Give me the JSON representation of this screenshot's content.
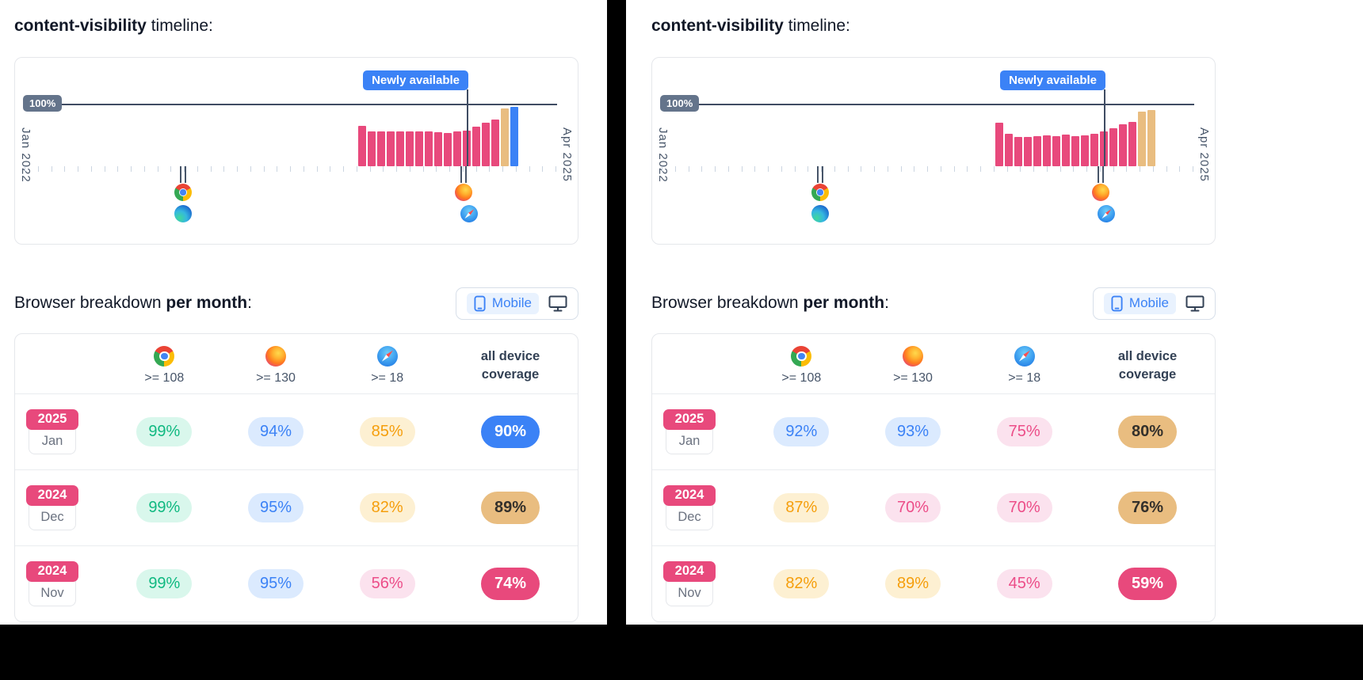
{
  "colors": {
    "pink": "#e8497c",
    "tan": "#e9bd80",
    "blue": "#3b82f6",
    "slate": "#3f4c63",
    "mint_bg": "#d9f7ec",
    "mint_text": "#10b981",
    "blue_bg": "#dbeafe",
    "blue_text": "#3b82f6",
    "orange_bg": "#fdf0d2",
    "orange_text": "#f59e0b",
    "pink_bg": "#fbe2ee",
    "pink_text": "#ec4d88"
  },
  "panels": [
    {
      "title": {
        "code": "content-visibility",
        "rest": " timeline:"
      },
      "timeline": {
        "y_max_label": "100%",
        "x_start_label": "Jan 2022",
        "x_end_label": "Apr 2025",
        "annotation": "Newly available",
        "markers": [
          {
            "icons": [
              "chrome",
              "edge"
            ]
          },
          {
            "icons": [
              "firefox",
              "safari"
            ]
          }
        ]
      },
      "breakdown": {
        "heading": {
          "plain": "Browser breakdown ",
          "bold": "per month",
          "suffix": ":"
        },
        "toggle": {
          "mobile_label": "Mobile"
        },
        "columns": [
          {
            "browser": "chrome",
            "version": ">= 108"
          },
          {
            "browser": "firefox",
            "version": ">= 130"
          },
          {
            "browser": "safari",
            "version": ">= 18"
          }
        ],
        "coverage_header": "all device coverage",
        "rows": [
          {
            "year": "2025",
            "month": "Jan",
            "cells": [
              {
                "text": "99%",
                "variant": "mint"
              },
              {
                "text": "94%",
                "variant": "blue"
              },
              {
                "text": "85%",
                "variant": "orange"
              }
            ],
            "coverage": {
              "text": "90%",
              "variant": "solid-blue"
            }
          },
          {
            "year": "2024",
            "month": "Dec",
            "cells": [
              {
                "text": "99%",
                "variant": "mint"
              },
              {
                "text": "95%",
                "variant": "blue"
              },
              {
                "text": "82%",
                "variant": "orange"
              }
            ],
            "coverage": {
              "text": "89%",
              "variant": "solid-tan"
            }
          },
          {
            "year": "2024",
            "month": "Nov",
            "cells": [
              {
                "text": "99%",
                "variant": "mint"
              },
              {
                "text": "95%",
                "variant": "blue"
              },
              {
                "text": "56%",
                "variant": "pink"
              }
            ],
            "coverage": {
              "text": "74%",
              "variant": "solid-pink"
            }
          }
        ]
      }
    },
    {
      "title": {
        "code": "content-visibility",
        "rest": " timeline:"
      },
      "timeline": {
        "y_max_label": "100%",
        "x_start_label": "Jan 2022",
        "x_end_label": "Apr 2025",
        "annotation": "Newly available",
        "markers": [
          {
            "icons": [
              "chrome",
              "edge"
            ]
          },
          {
            "icons": [
              "firefox",
              "safari"
            ]
          }
        ]
      },
      "breakdown": {
        "heading": {
          "plain": "Browser breakdown ",
          "bold": "per month",
          "suffix": ":"
        },
        "toggle": {
          "mobile_label": "Mobile"
        },
        "columns": [
          {
            "browser": "chrome",
            "version": ">= 108"
          },
          {
            "browser": "firefox",
            "version": ">= 130"
          },
          {
            "browser": "safari",
            "version": ">= 18"
          }
        ],
        "coverage_header": "all device coverage",
        "rows": [
          {
            "year": "2025",
            "month": "Jan",
            "cells": [
              {
                "text": "92%",
                "variant": "blue"
              },
              {
                "text": "93%",
                "variant": "blue"
              },
              {
                "text": "75%",
                "variant": "pink"
              }
            ],
            "coverage": {
              "text": "80%",
              "variant": "solid-tan"
            }
          },
          {
            "year": "2024",
            "month": "Dec",
            "cells": [
              {
                "text": "87%",
                "variant": "orange"
              },
              {
                "text": "70%",
                "variant": "pink"
              },
              {
                "text": "70%",
                "variant": "pink"
              }
            ],
            "coverage": {
              "text": "76%",
              "variant": "solid-tan"
            }
          },
          {
            "year": "2024",
            "month": "Nov",
            "cells": [
              {
                "text": "82%",
                "variant": "orange"
              },
              {
                "text": "89%",
                "variant": "orange"
              },
              {
                "text": "45%",
                "variant": "pink"
              }
            ],
            "coverage": {
              "text": "59%",
              "variant": "solid-pink"
            }
          }
        ]
      }
    }
  ],
  "chart_data": [
    {
      "type": "bar",
      "panel": "left",
      "title": "content-visibility timeline",
      "xlabel": "",
      "ylabel": "",
      "x_axis_range": [
        "Jan 2022",
        "Apr 2025"
      ],
      "ylim": [
        0,
        100
      ],
      "y_reference_line": {
        "label": "100%",
        "value": 100
      },
      "annotation": {
        "label": "Newly available"
      },
      "x": [
        "Dec 2023",
        "Jan 2024",
        "Feb 2024",
        "Mar 2024",
        "Apr 2024",
        "May 2024",
        "Jun 2024",
        "Jul 2024",
        "Aug 2024",
        "Sep 2024",
        "Oct 2024",
        "Nov 2024",
        "Dec 2024",
        "Jan 2025",
        "Feb 2025",
        "Mar 2025",
        "Apr 2025"
      ],
      "values": [
        66,
        57,
        56,
        56,
        57,
        56,
        56,
        56,
        55,
        54,
        56,
        58,
        64,
        70,
        76,
        93,
        96
      ],
      "colors": [
        "pink",
        "pink",
        "pink",
        "pink",
        "pink",
        "pink",
        "pink",
        "pink",
        "pink",
        "pink",
        "pink",
        "pink",
        "pink",
        "pink",
        "pink",
        "tan",
        "blue"
      ]
    },
    {
      "type": "bar",
      "panel": "right",
      "title": "content-visibility timeline",
      "xlabel": "",
      "ylabel": "",
      "x_axis_range": [
        "Jan 2022",
        "Apr 2025"
      ],
      "ylim": [
        0,
        100
      ],
      "y_reference_line": {
        "label": "100%",
        "value": 100
      },
      "annotation": {
        "label": "Newly available"
      },
      "x": [
        "Dec 2023",
        "Jan 2024",
        "Feb 2024",
        "Mar 2024",
        "Apr 2024",
        "May 2024",
        "Jun 2024",
        "Jul 2024",
        "Aug 2024",
        "Sep 2024",
        "Oct 2024",
        "Nov 2024",
        "Dec 2024",
        "Jan 2025",
        "Feb 2025",
        "Mar 2025",
        "Apr 2025"
      ],
      "values": [
        70,
        53,
        48,
        48,
        49,
        50,
        49,
        51,
        49,
        50,
        53,
        57,
        62,
        68,
        72,
        88,
        91
      ],
      "colors": [
        "pink",
        "pink",
        "pink",
        "pink",
        "pink",
        "pink",
        "pink",
        "pink",
        "pink",
        "pink",
        "pink",
        "pink",
        "pink",
        "pink",
        "pink",
        "tan",
        "tan"
      ]
    }
  ]
}
